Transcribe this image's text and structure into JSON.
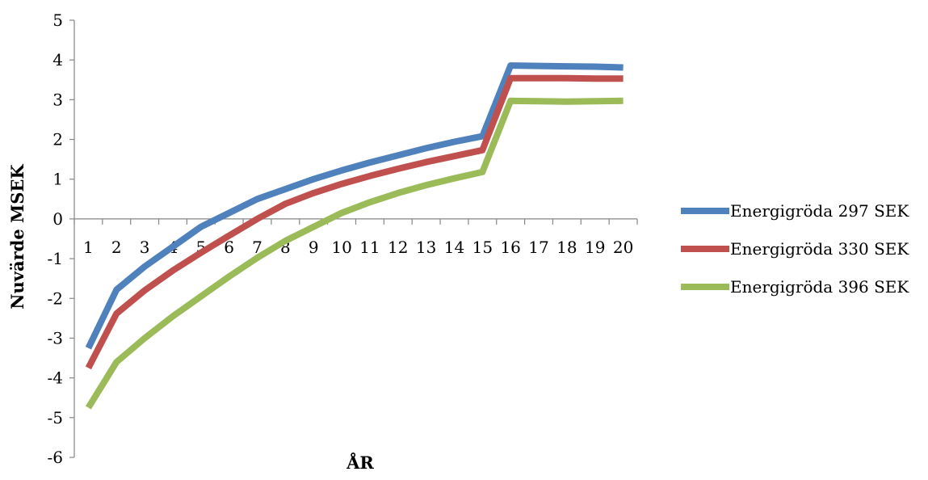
{
  "chart_data": {
    "type": "line",
    "title": "",
    "xlabel": "ÅR",
    "ylabel": "Nuvärde MSEK",
    "categories": [
      "1",
      "2",
      "3",
      "4",
      "5",
      "6",
      "7",
      "8",
      "9",
      "10",
      "11",
      "12",
      "13",
      "14",
      "15",
      "16",
      "17",
      "18",
      "19",
      "20"
    ],
    "ylim": [
      -6,
      5
    ],
    "yticks": [
      "-6",
      "-5",
      "-4",
      "-3",
      "-2",
      "-1",
      "0",
      "1",
      "2",
      "3",
      "4",
      "5"
    ],
    "grid": false,
    "legend_position": "right",
    "series": [
      {
        "name": "Energigröda 297 SEK",
        "color": "#4f81bd",
        "values": [
          -3.25,
          -1.78,
          -1.2,
          -0.7,
          -0.2,
          0.15,
          0.5,
          0.75,
          1.0,
          1.22,
          1.42,
          1.6,
          1.78,
          1.94,
          2.08,
          3.86,
          3.85,
          3.84,
          3.83,
          3.81
        ]
      },
      {
        "name": "Energigröda 330 SEK",
        "color": "#c0504d",
        "values": [
          -3.75,
          -2.38,
          -1.8,
          -1.3,
          -0.85,
          -0.42,
          0.0,
          0.38,
          0.65,
          0.88,
          1.08,
          1.26,
          1.43,
          1.58,
          1.73,
          3.54,
          3.54,
          3.54,
          3.53,
          3.53
        ]
      },
      {
        "name": "Energigröda 396 SEK",
        "color": "#9bbb59",
        "values": [
          -4.75,
          -3.6,
          -3.0,
          -2.45,
          -1.95,
          -1.45,
          -0.98,
          -0.55,
          -0.2,
          0.15,
          0.42,
          0.65,
          0.85,
          1.02,
          1.18,
          2.97,
          2.96,
          2.95,
          2.96,
          2.97
        ]
      }
    ]
  }
}
